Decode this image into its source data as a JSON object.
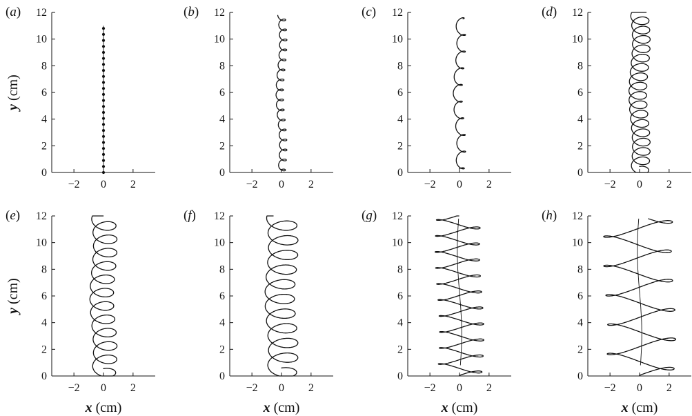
{
  "chart_data": {
    "type": "line",
    "xlim": [
      -3.5,
      3.5
    ],
    "ylim": [
      0,
      12
    ],
    "xticks": [
      -2,
      0,
      2
    ],
    "yticks": [
      0,
      2,
      4,
      6,
      8,
      10,
      12
    ],
    "xlabel_italic": "x",
    "xlabel_unit": "(cm)",
    "ylabel_italic": "y",
    "ylabel_unit": "(cm)",
    "grid": false,
    "panels": [
      {
        "label_pre": "(",
        "label_letter": "a",
        "label_post": ")",
        "kind": "dots",
        "amp": 0.05,
        "height": 0,
        "period": 0.45,
        "ymax": 11
      },
      {
        "label_pre": "(",
        "label_letter": "b",
        "label_post": ")",
        "kind": "loops",
        "amp": 0.25,
        "height": 0.22,
        "period": 0.75,
        "ymax": 11.8
      },
      {
        "label_pre": "(",
        "label_letter": "c",
        "label_post": ")",
        "kind": "loops",
        "amp": 0.3,
        "height": 0.28,
        "period": 1.25,
        "ymax": 11.7
      },
      {
        "label_pre": "(",
        "label_letter": "d",
        "label_post": ")",
        "kind": "loops",
        "amp": 0.6,
        "height": 0.45,
        "period": 0.7,
        "ymax": 12
      },
      {
        "label_pre": "(",
        "label_letter": "e",
        "label_post": ")",
        "kind": "loops",
        "amp": 0.8,
        "height": 0.55,
        "period": 1.0,
        "ymax": 12
      },
      {
        "label_pre": "(",
        "label_letter": "f",
        "label_post": ")",
        "kind": "loops",
        "amp": 1.0,
        "height": 0.6,
        "period": 1.1,
        "ymax": 12
      },
      {
        "label_pre": "(",
        "label_letter": "g",
        "label_post": ")",
        "kind": "flat",
        "amp": 1.5,
        "height": 0.35,
        "period": 1.2,
        "ymax": 12
      },
      {
        "label_pre": "(",
        "label_letter": "h",
        "label_post": ")",
        "kind": "flat",
        "amp": 2.3,
        "height": 0.6,
        "period": 2.2,
        "ymax": 12
      }
    ]
  }
}
